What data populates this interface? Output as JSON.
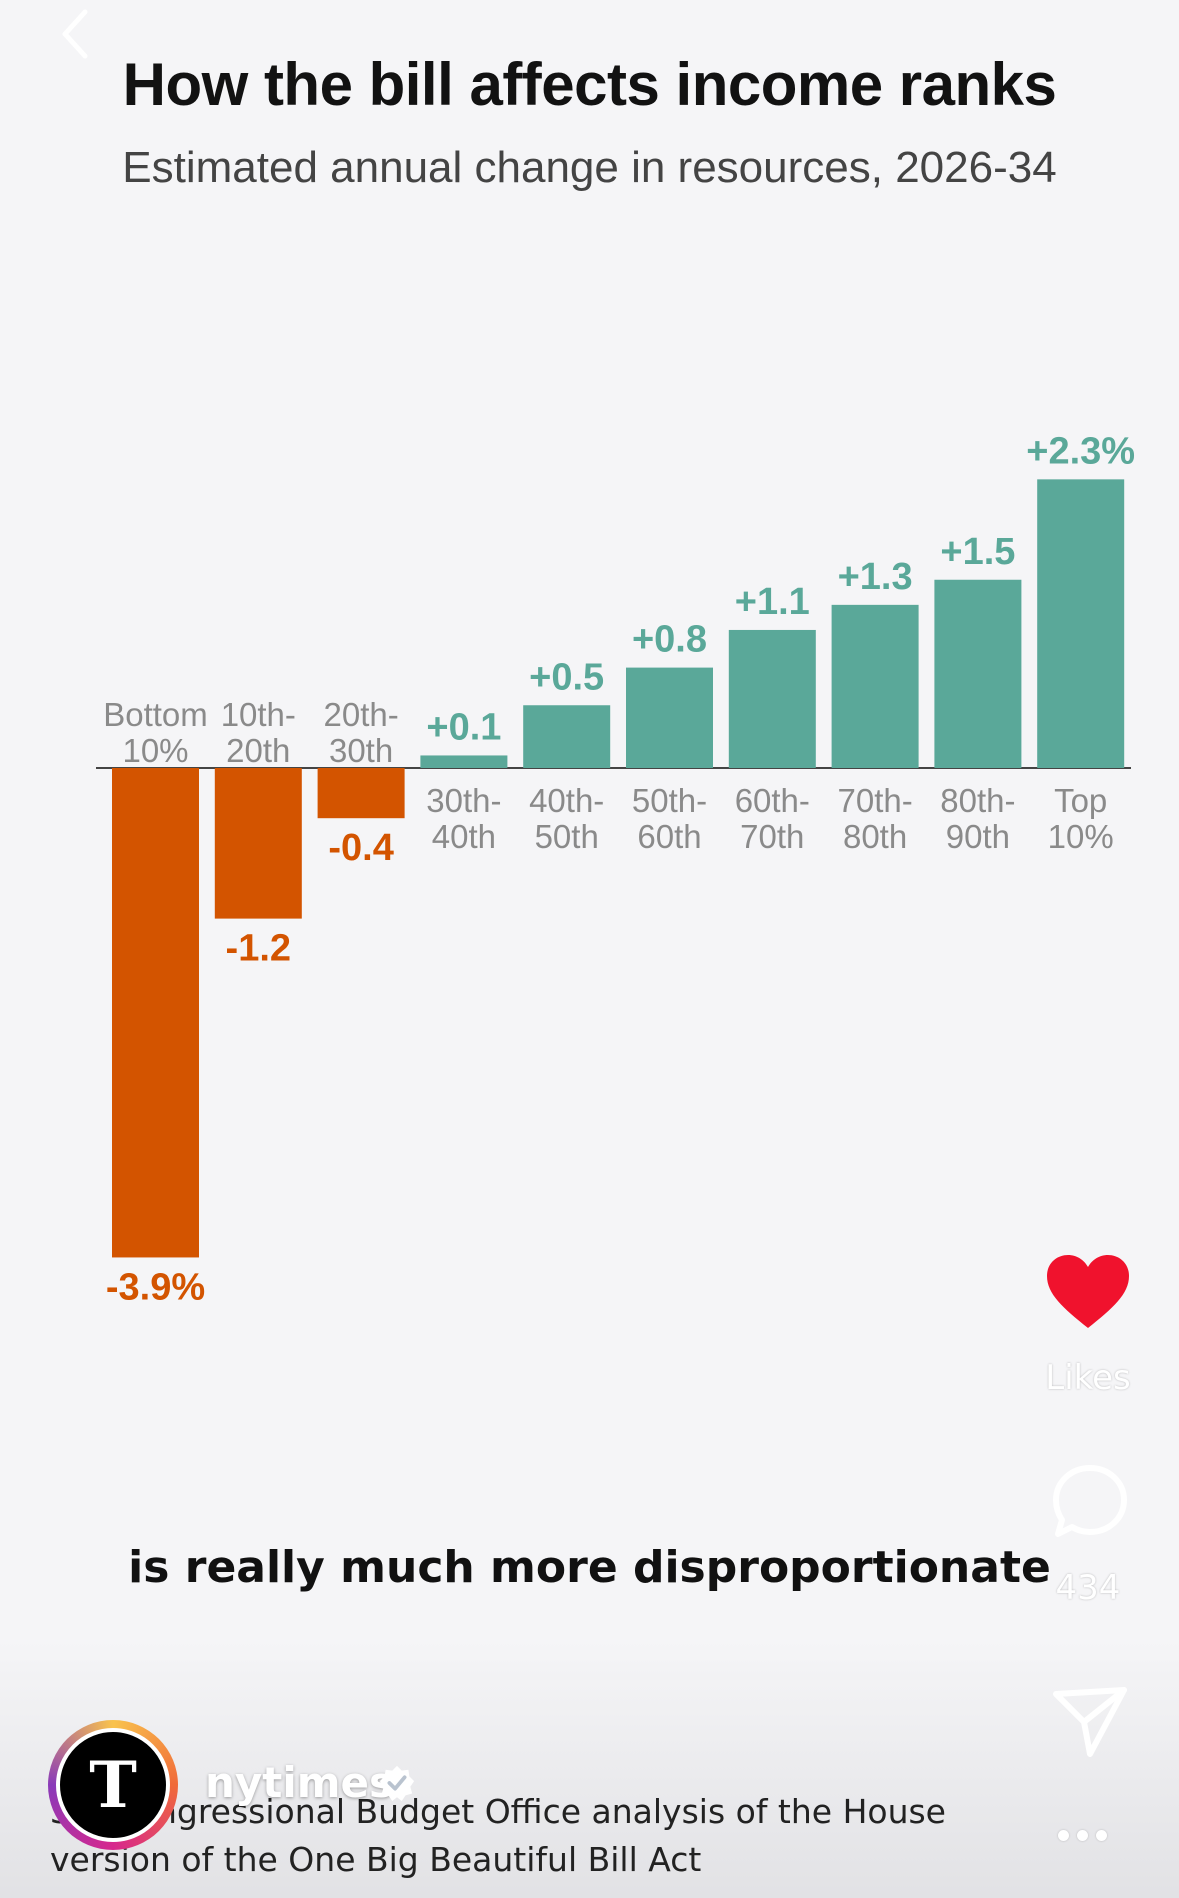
{
  "chart_title": "How the bill affects income ranks",
  "chart_subtitle": "Estimated annual change in resources, 2026-34",
  "chart_data": {
    "type": "bar",
    "title": "How the bill affects income ranks",
    "subtitle": "Estimated annual change in resources, 2026-34",
    "categories": [
      [
        "Bottom",
        "10%"
      ],
      [
        "10th-",
        "20th"
      ],
      [
        "20th-",
        "30th"
      ],
      [
        "30th-",
        "40th"
      ],
      [
        "40th-",
        "50th"
      ],
      [
        "50th-",
        "60th"
      ],
      [
        "60th-",
        "70th"
      ],
      [
        "70th-",
        "80th"
      ],
      [
        "80th-",
        "90th"
      ],
      [
        "Top",
        "10%"
      ]
    ],
    "values": [
      -3.9,
      -1.2,
      -0.4,
      0.1,
      0.5,
      0.8,
      1.1,
      1.3,
      1.5,
      2.3
    ],
    "value_labels": [
      "-3.9%",
      "-1.2",
      "-0.4",
      "+0.1",
      "+0.5",
      "+0.8",
      "+1.1",
      "+1.3",
      "+1.5",
      "+2.3%"
    ],
    "xlabel": "",
    "ylabel": "",
    "ylim": [
      -3.9,
      2.3
    ],
    "grid": false,
    "legend": "none",
    "colors": {
      "negative": "#d35400",
      "positive": "#5aa899",
      "axis_labels": "#8a8a8a"
    }
  },
  "video_caption": "is really much more disproportionate",
  "source_text": {
    "line1_prefix": "So",
    "line1_rest": ": Congressional Budget Office analysis of the House",
    "line2": "version of the One Big Beautiful Bill Act"
  },
  "account": {
    "username": "nytimes",
    "avatar_letter": "T",
    "verified_icon": "verified-badge-icon"
  },
  "actions": {
    "likes_label": "Likes",
    "comments_count": "434",
    "like_icon": "heart-icon",
    "comment_icon": "comment-bubble-icon",
    "share_icon": "paper-plane-icon",
    "more_icon": "more-dots-icon"
  },
  "nav": {
    "back_icon": "chevron-left-icon"
  }
}
